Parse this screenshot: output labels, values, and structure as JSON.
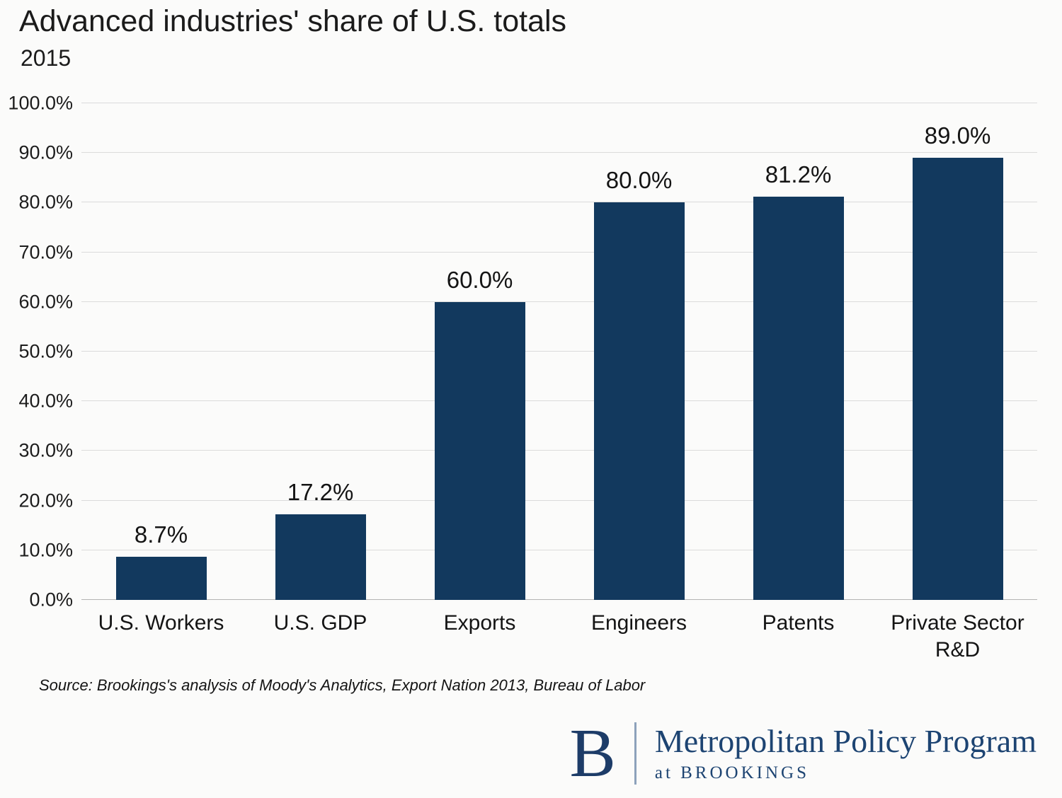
{
  "header": {
    "title": "Advanced industries' share of U.S. totals",
    "subtitle": "2015"
  },
  "source_note": "Source: Brookings's analysis of Moody's Analytics, Export Nation 2013, Bureau of Labor",
  "logo": {
    "letter": "B",
    "program": "Metropolitan Policy Program",
    "sub": "at BROOKINGS"
  },
  "colors": {
    "bar": "#12395e",
    "brand_navy": "#1d4472",
    "grid": "#dbdbdb",
    "background": "#fbfbfa"
  },
  "chart_data": {
    "type": "bar",
    "title": "Advanced industries' share of U.S. totals",
    "subtitle": "2015",
    "categories": [
      "U.S. Workers",
      "U.S. GDP",
      "Exports",
      "Engineers",
      "Patents",
      "Private Sector R&D"
    ],
    "values": [
      8.7,
      17.2,
      60.0,
      80.0,
      81.2,
      89.0
    ],
    "value_labels": [
      "8.7%",
      "17.2%",
      "60.0%",
      "80.0%",
      "81.2%",
      "89.0%"
    ],
    "xlabel": "",
    "ylabel": "",
    "ylim": [
      0,
      100
    ],
    "grid": true,
    "legend": false,
    "yticks": [
      {
        "value": 0,
        "label": "0.0%"
      },
      {
        "value": 10,
        "label": "10.0%"
      },
      {
        "value": 20,
        "label": "20.0%"
      },
      {
        "value": 30,
        "label": "30.0%"
      },
      {
        "value": 40,
        "label": "40.0%"
      },
      {
        "value": 50,
        "label": "50.0%"
      },
      {
        "value": 60,
        "label": "60.0%"
      },
      {
        "value": 70,
        "label": "70.0%"
      },
      {
        "value": 80,
        "label": "80.0%"
      },
      {
        "value": 90,
        "label": "90.0%"
      },
      {
        "value": 100,
        "label": "100.0%"
      }
    ]
  }
}
